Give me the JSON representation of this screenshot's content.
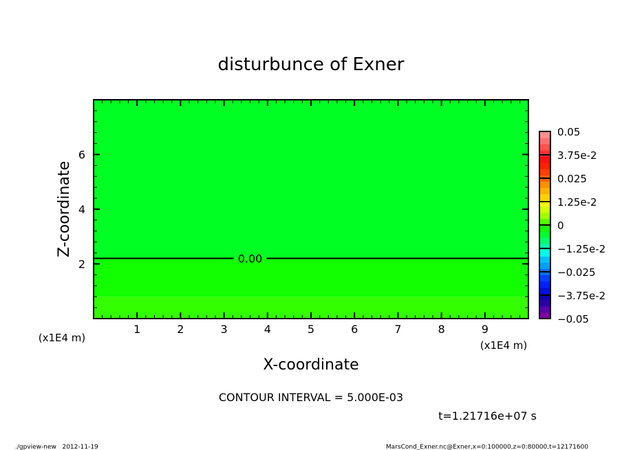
{
  "chart_data": {
    "type": "heatmap",
    "title": "disturbunce of Exner",
    "xlabel": "X-coordinate",
    "ylabel": "Z-coordinate",
    "x_unit": "(x1E4 m)",
    "y_unit": "(x1E4 m)",
    "xlim": [
      0,
      10
    ],
    "ylim": [
      0,
      8
    ],
    "x_ticks": [
      "1",
      "2",
      "3",
      "4",
      "5",
      "6",
      "7",
      "8",
      "9"
    ],
    "y_ticks": [
      "2",
      "4",
      "6"
    ],
    "bands": [
      {
        "z_from": 0,
        "z_to": 0.8,
        "level": "0.005–0.01",
        "color": "#33ff00"
      },
      {
        "z_from": 0.8,
        "z_to": 2.2,
        "level": "0–0.005",
        "color": "#11ff00"
      },
      {
        "z_from": 2.2,
        "z_to": 8,
        "level": "-0.005–0",
        "color": "#00ff22"
      }
    ],
    "contours": [
      {
        "value": "0.00",
        "z": 2.2,
        "label_x": 3.6
      }
    ],
    "colorbar": {
      "min": -0.05,
      "max": 0.05,
      "step": 0.005,
      "labels": [
        "-0.05",
        "-3.75e-2",
        "-0.025",
        "-1.25e-2",
        "0",
        "1.25e-2",
        "0.025",
        "3.75e-2",
        "0.05"
      ],
      "colors": [
        "#7a00a0",
        "#5a00a8",
        "#2a00a8",
        "#1000b0",
        "#0010e0",
        "#0020ff",
        "#0040ff",
        "#0070ff",
        "#00a0ff",
        "#00c0ff",
        "#00ffee",
        "#00ffb0",
        "#00ff70",
        "#00ff30",
        "#10ff00",
        "#50ff00",
        "#a0ff00",
        "#d0ff00",
        "#ffff00",
        "#ffd000"
      ],
      "colors_upper": [
        "#ffb000",
        "#ff9000",
        "#ff6000",
        "#ff4000",
        "#ff2000",
        "#ff1010",
        "#ff3030",
        "#ff5050",
        "#ff7070",
        "#ff9090"
      ]
    },
    "contour_interval": "CONTOUR INTERVAL = 5.000E-03",
    "time": "t=1.21716e+07 s"
  },
  "footer": {
    "left": "./gpview-new   2012-11-19",
    "right": "MarsCond_Exner.nc@Exner,x=0:100000,z=0:80000,t=12171600"
  }
}
